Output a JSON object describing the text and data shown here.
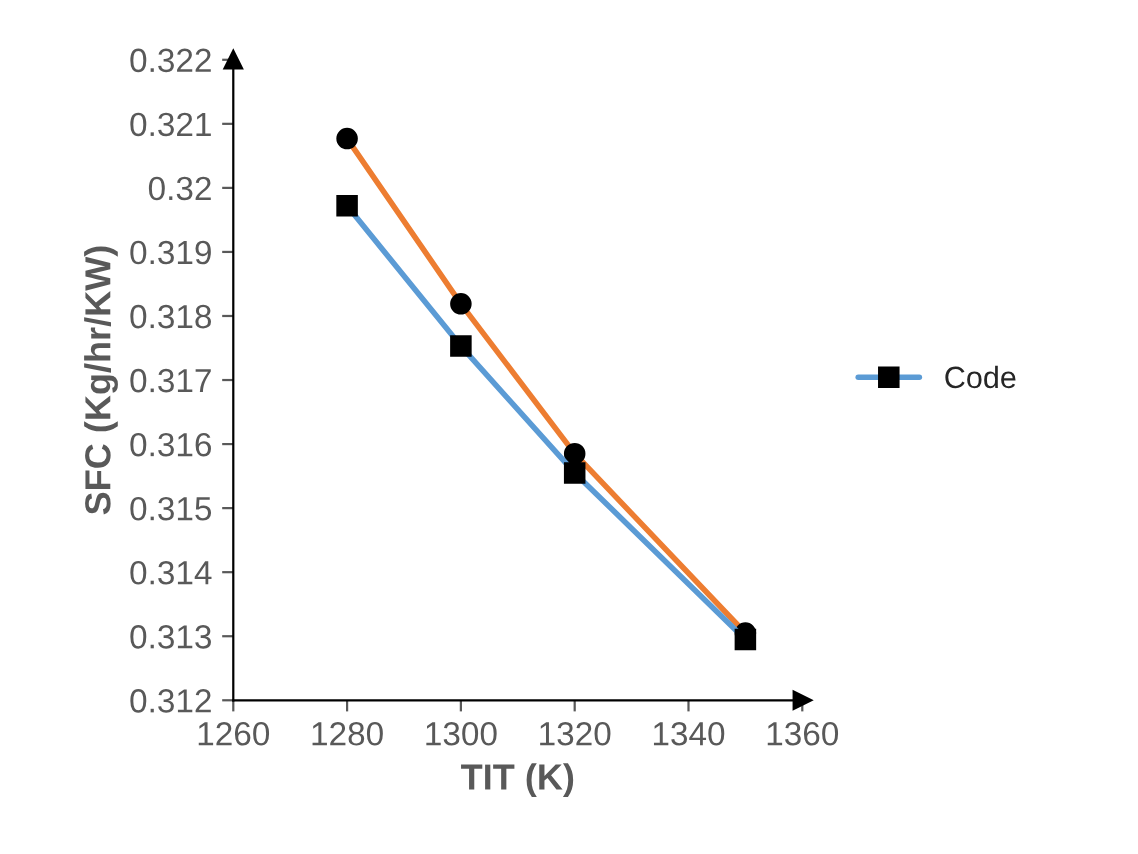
{
  "chart_data": {
    "type": "line",
    "xlabel": "TIT (K)",
    "ylabel": "SFC (Kg/hr/KW)",
    "x": [
      1280,
      1300,
      1320,
      1350
    ],
    "series": [
      {
        "name": "Code",
        "color": "#5b9bd5",
        "marker": "square",
        "values": [
          0.31972,
          0.31753,
          0.31555,
          0.31295
        ]
      },
      {
        "color": "#ed7d31",
        "marker": "circle",
        "values": [
          0.32077,
          0.31819,
          0.31585,
          0.31305
        ]
      }
    ],
    "xlim": [
      1260,
      1360
    ],
    "xticks": [
      1260,
      1280,
      1300,
      1320,
      1340,
      1360
    ],
    "ylim": [
      0.312,
      0.322
    ],
    "yticks": [
      0.312,
      0.313,
      0.314,
      0.315,
      0.316,
      0.317,
      0.318,
      0.319,
      0.32,
      0.321,
      0.322
    ],
    "grid": false,
    "legend": "right",
    "line_style": "solid"
  }
}
